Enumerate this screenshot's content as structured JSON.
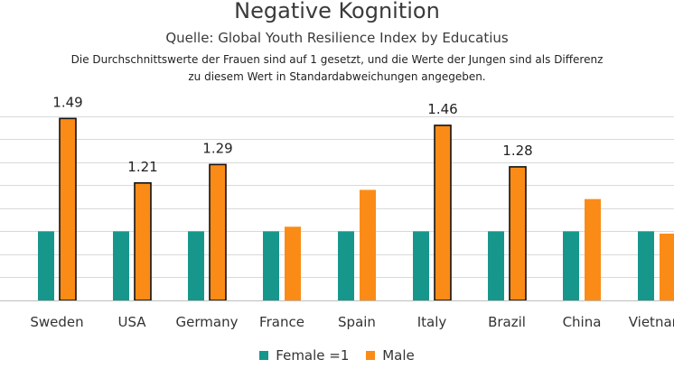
{
  "chart_data": {
    "type": "bar",
    "title": "Negative Kognition",
    "subtitle": "Quelle: Global Youth Resilience Index by Educatius",
    "note_lines": [
      "Die Durchschnittswerte der Frauen sind auf 1 gesetzt, und die Werte der Jungen sind als Differenz",
      "zu diesem Wert in Standardabweichungen angegeben."
    ],
    "categories": [
      "Sweden",
      "USA",
      "Germany",
      "France",
      "Spain",
      "Italy",
      "Brazil",
      "China",
      "Vietnam"
    ],
    "series": [
      {
        "name": "Female =1",
        "color": "#17978c",
        "values": [
          1,
          1,
          1,
          1,
          1,
          1,
          1,
          1,
          1
        ]
      },
      {
        "name": "Male",
        "color": "#fb8b17",
        "values": [
          1.49,
          1.21,
          1.29,
          1.02,
          1.18,
          1.46,
          1.28,
          1.14,
          0.99
        ],
        "data_labels": [
          "1.49",
          "1.21",
          "1.29",
          "",
          "",
          "1.46",
          "1.28",
          "",
          ""
        ],
        "outlined": [
          true,
          true,
          true,
          false,
          false,
          true,
          true,
          false,
          false
        ]
      }
    ],
    "ylim": [
      0.7,
      1.55
    ],
    "grid": true,
    "legend": "bottom"
  }
}
